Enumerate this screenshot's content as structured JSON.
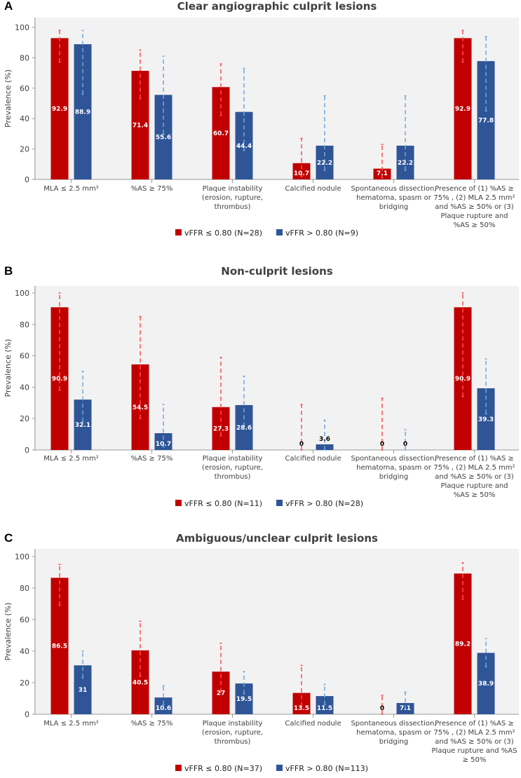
{
  "colors": {
    "red": "#c00000",
    "blue": "#2f5597",
    "red_err": "#ff4d4d",
    "blue_err": "#6fa8dc",
    "plot_bg": "#f2f2f2"
  },
  "chart_data": [
    {
      "type": "bar",
      "panel": "A",
      "title": "Clear angiographic culprit lesions",
      "ylabel": "Prevalence (%)",
      "ylim": [
        0,
        100
      ],
      "yticks": [
        0,
        20,
        40,
        60,
        80,
        100
      ],
      "categories": [
        [
          "MLA ≤ 2.5 mm²"
        ],
        [
          "%AS ≥ 75%"
        ],
        [
          "Plaque instability",
          "(erosion, rupture,",
          "thrombus)"
        ],
        [
          "Calcified nodule"
        ],
        [
          "Spontaneous dissection,",
          "hematoma, spasm or",
          "bridging"
        ],
        [
          "Presence of (1) %AS ≥",
          "75% , (2) MLA 2.5 mm²",
          "and %AS ≥ 50%  or (3)",
          "Plaque rupture and",
          "%AS ≥ 50%"
        ]
      ],
      "series": [
        {
          "name": "vFFR ≤ 0.80 (N=28)",
          "values": [
            92.9,
            71.4,
            60.7,
            10.7,
            7.1,
            92.9
          ],
          "labels": [
            "92.9",
            "71.4",
            "60.7",
            "10.7",
            "7.1",
            "92.9"
          ],
          "ci": [
            [
              77,
              98
            ],
            [
              53,
              85
            ],
            [
              42,
              76
            ],
            [
              2,
              27
            ],
            [
              1,
              23
            ],
            [
              77,
              98
            ]
          ]
        },
        {
          "name": "vFFR > 0.80 (N=9)",
          "values": [
            88.9,
            55.6,
            44.4,
            22.2,
            22.2,
            77.8
          ],
          "labels": [
            "88.9",
            "55.6",
            "44.4",
            "22.2",
            "22.2",
            "77.8"
          ],
          "ci": [
            [
              56,
              98
            ],
            [
              30,
              81
            ],
            [
              19,
              73
            ],
            [
              6,
              55
            ],
            [
              6,
              55
            ],
            [
              45,
              94
            ]
          ]
        }
      ]
    },
    {
      "type": "bar",
      "panel": "B",
      "title": "Non-culprit lesions",
      "ylabel": "Prevalence (%)",
      "ylim": [
        0,
        100
      ],
      "yticks": [
        0,
        20,
        40,
        60,
        80,
        100
      ],
      "categories": [
        [
          "MLA ≤ 2.5 mm²"
        ],
        [
          "%AS ≥ 75%"
        ],
        [
          "Plaque instability",
          "(erosion, rupture,",
          "thrombus)"
        ],
        [
          "Calcified nodule"
        ],
        [
          "Spontaneous dissection,",
          "hematoma, spasm or",
          "bridging"
        ],
        [
          "Presence of (1) %AS ≥",
          "75% , (2) MLA 2.5 mm²",
          "and %AS ≥ 50%  or (3)",
          "Plaque rupture and",
          "%AS ≥ 50%"
        ]
      ],
      "series": [
        {
          "name": "vFFR ≤ 0.80 (N=11)",
          "values": [
            90.9,
            54.5,
            27.3,
            0,
            0,
            90.9
          ],
          "labels": [
            "90.9",
            "54.5",
            "27.3",
            "0",
            "0",
            "90.9"
          ],
          "ci": [
            [
              38,
              100
            ],
            [
              20,
              85
            ],
            [
              9,
              59
            ],
            [
              0,
              29
            ],
            [
              0,
              33
            ],
            [
              34,
              100
            ]
          ]
        },
        {
          "name": "vFFR > 0.80 (N=28)",
          "values": [
            32.1,
            10.7,
            28.6,
            3.6,
            0,
            39.3
          ],
          "labels": [
            "32.1",
            "10.7",
            "28.6",
            "3.6",
            "0",
            "39.3"
          ],
          "ci": [
            [
              18,
              50
            ],
            [
              2,
              29
            ],
            [
              15,
              47
            ],
            [
              0,
              19
            ],
            [
              0,
              13
            ],
            [
              23,
              58
            ]
          ]
        }
      ]
    },
    {
      "type": "bar",
      "panel": "C",
      "title": "Ambiguous/unclear culprit lesions",
      "ylabel": "Prevalence (%)",
      "ylim": [
        0,
        100
      ],
      "yticks": [
        0,
        20,
        40,
        60,
        80,
        100
      ],
      "categories": [
        [
          "MLA ≤ 2.5 mm²"
        ],
        [
          "%AS ≥ 75%"
        ],
        [
          "Plaque instability",
          "(erosion, rupture,",
          "thrombus)"
        ],
        [
          "Calcified nodule"
        ],
        [
          "Spontaneous dissection,",
          "hematoma, spasm or",
          "bridging"
        ],
        [
          "Presence of (1) %AS ≥",
          "75% , (2) MLA 2.5 mm²",
          "and %AS ≥ 50% or  (3)",
          "Plaque rupture and  %AS",
          "≥ 50%"
        ]
      ],
      "series": [
        {
          "name": "vFFR ≤ 0.80 (N=37)",
          "values": [
            86.5,
            40.5,
            27,
            13.5,
            0,
            89.2
          ],
          "labels": [
            "86.5",
            "40.5",
            "27",
            "13.5",
            "0",
            "89.2"
          ],
          "ci": [
            [
              69,
              95
            ],
            [
              24,
              59
            ],
            [
              14,
              45
            ],
            [
              5,
              31
            ],
            [
              0,
              12
            ],
            [
              73,
              96
            ]
          ]
        },
        {
          "name": "vFFR > 0.80 (N=113)",
          "values": [
            31,
            10.6,
            19.5,
            11.5,
            7.1,
            38.9
          ],
          "labels": [
            "31",
            "10.6",
            "19.5",
            "11.5",
            "7.1",
            "38.9"
          ],
          "ci": [
            [
              23,
              40
            ],
            [
              6,
              18
            ],
            [
              13,
              27
            ],
            [
              6,
              19
            ],
            [
              3,
              14
            ],
            [
              30,
              48
            ]
          ]
        }
      ]
    }
  ]
}
